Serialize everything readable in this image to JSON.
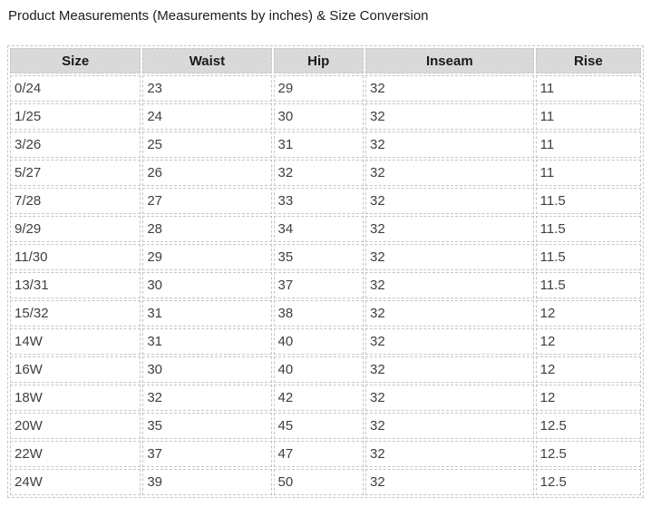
{
  "chart_data": {
    "type": "table",
    "title": "Product Measurements (Measurements by inches) & Size Conversion",
    "columns": [
      "Size",
      "Waist",
      "Hip",
      "Inseam",
      "Rise"
    ],
    "rows": [
      [
        "0/24",
        "23",
        "29",
        "32",
        "11"
      ],
      [
        "1/25",
        "24",
        "30",
        "32",
        "11"
      ],
      [
        "3/26",
        "25",
        "31",
        "32",
        "11"
      ],
      [
        "5/27",
        "26",
        "32",
        "32",
        "11"
      ],
      [
        "7/28",
        "27",
        "33",
        "32",
        "11.5"
      ],
      [
        "9/29",
        "28",
        "34",
        "32",
        "11.5"
      ],
      [
        "11/30",
        "29",
        "35",
        "32",
        "11.5"
      ],
      [
        "13/31",
        "30",
        "37",
        "32",
        "11.5"
      ],
      [
        "15/32",
        "31",
        "38",
        "32",
        "12"
      ],
      [
        "14W",
        "31",
        "40",
        "32",
        "12"
      ],
      [
        "16W",
        "30",
        "40",
        "32",
        "12"
      ],
      [
        "18W",
        "32",
        "42",
        "32",
        "12"
      ],
      [
        "20W",
        "35",
        "45",
        "32",
        "12.5"
      ],
      [
        "22W",
        "37",
        "47",
        "32",
        "12.5"
      ],
      [
        "24W",
        "39",
        "50",
        "32",
        "12.5"
      ]
    ],
    "units": "inches",
    "layout_hints": {
      "header_align": "center",
      "body_align": "left",
      "grid": "dashed"
    }
  },
  "colors": {
    "header_bg": "#d9d9d9",
    "border": "#c6c6c6",
    "body_text": "#3f3f3f",
    "header_text": "#1a1a1a",
    "page_bg": "#ffffff"
  }
}
